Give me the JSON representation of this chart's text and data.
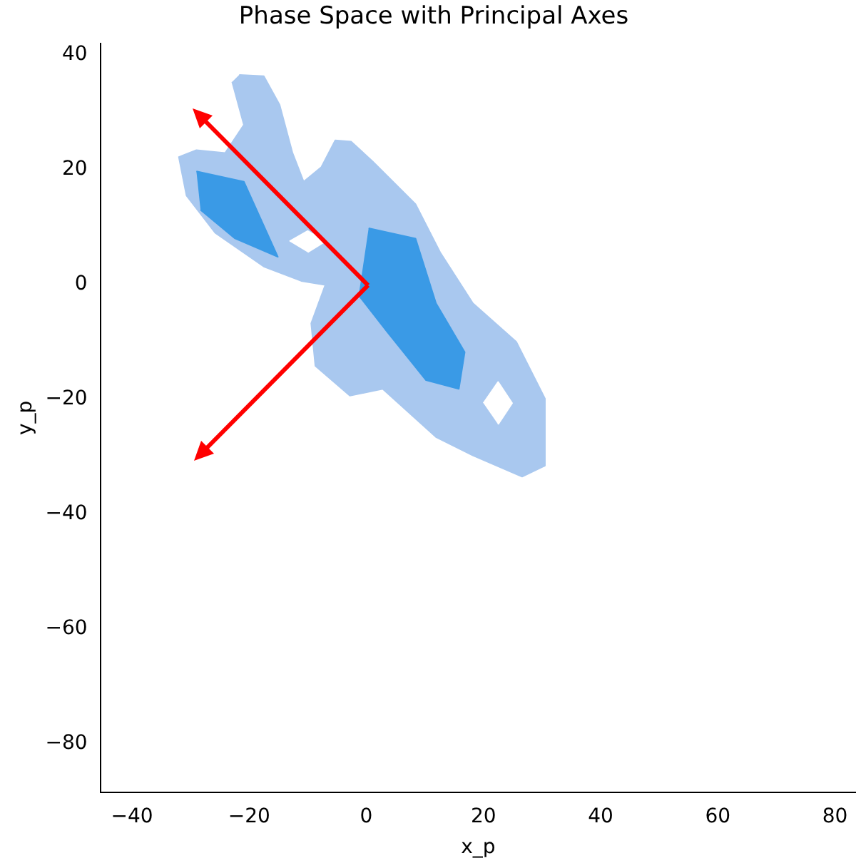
{
  "chart_data": {
    "type": "area",
    "title": "Phase Space with Principal Axes",
    "xlabel": "x_p",
    "ylabel": "y_p",
    "xlim": [
      -45.4,
      83.6
    ],
    "ylim": [
      -88.5,
      42
    ],
    "xticks": [
      -40,
      -20,
      0,
      20,
      40,
      60,
      80
    ],
    "yticks": [
      -80,
      -60,
      -40,
      -20,
      0,
      20,
      40
    ],
    "grid": false,
    "legend": false,
    "marker": "none",
    "series": [
      {
        "color": "#a9c8ef",
        "x": [
          -21.7,
          -17.5,
          -14.8,
          -12.6,
          -10.7,
          -7.7,
          -5.3,
          -2.6,
          1.1,
          8.4,
          12.6,
          18.2,
          25.6,
          30.5,
          30.5,
          26.6,
          18.2,
          11.9,
          2.8,
          -2.8,
          -8.7,
          -9.4,
          -7.0,
          -11.1,
          -17.5,
          -25.8,
          -30.7,
          -32.0,
          -29.0,
          -24.1,
          -20.9,
          -22.9
        ],
        "values": [
          36.5,
          36.3,
          31.3,
          22.9,
          17.9,
          20.4,
          25.1,
          24.9,
          21.4,
          14.0,
          5.6,
          -3.3,
          -10.0,
          -19.9,
          -31.6,
          -33.5,
          -29.8,
          -26.6,
          -18.2,
          -19.4,
          -14.2,
          -6.8,
          -0.1,
          0.6,
          3.1,
          9.0,
          15.5,
          22.2,
          23.4,
          22.9,
          27.8,
          35.3
        ]
      },
      {
        "color": "#ffffff",
        "x": [
          -13.1,
          -10,
          -7,
          -10
        ],
        "values": [
          7.5,
          9.3,
          7.5,
          5.6
        ]
      },
      {
        "color": "#ffffff",
        "x": [
          20,
          22.5,
          24.9,
          22.5
        ],
        "values": [
          -20.7,
          -17,
          -20.7,
          -24.4
        ]
      },
      {
        "color": "#3a9ae6",
        "x": [
          -29,
          -20.9,
          -15.1,
          -22.4,
          -28.3
        ],
        "values": [
          19.7,
          17.9,
          4.8,
          8,
          13
        ]
      },
      {
        "color": "#3a9ae6",
        "x": [
          0.4,
          8.4,
          11.9,
          16.8,
          15.8,
          10.2,
          3.6,
          -1.3
        ],
        "values": [
          9.8,
          8,
          -3.3,
          -11.8,
          -18.2,
          -16.7,
          -8.3,
          -1.9
        ]
      }
    ]
  }
}
